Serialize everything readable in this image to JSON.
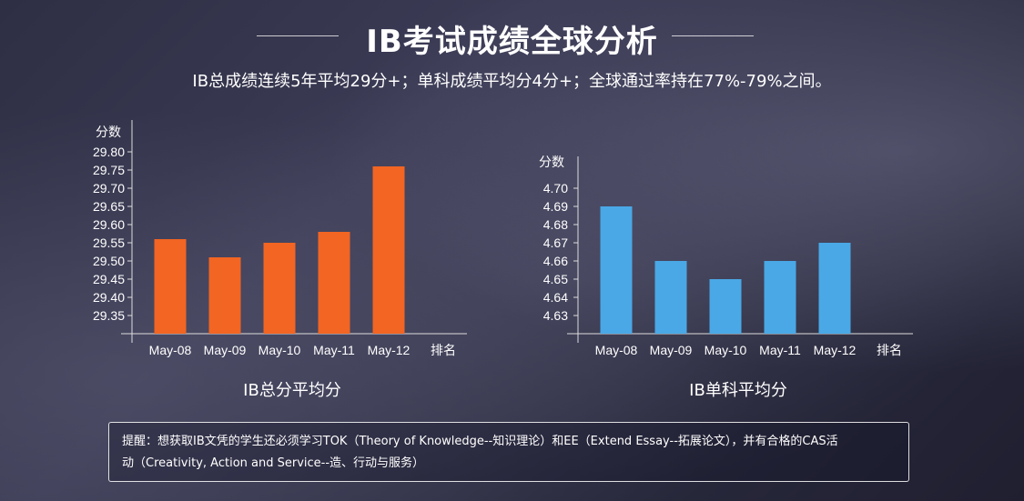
{
  "header": {
    "title": "IB考试成绩全球分析",
    "subtitle": "IB总成绩连续5年平均29分+；单科成绩平均分4分+；全球通过率持在77%-79%之间。"
  },
  "chart_data": [
    {
      "type": "bar",
      "title": "IB总分平均分",
      "ylabel": "分数",
      "categories": [
        "May-08",
        "May-09",
        "May-10",
        "May-11",
        "May-12",
        "排名"
      ],
      "values": [
        29.56,
        29.51,
        29.55,
        29.58,
        29.76,
        null
      ],
      "yticks": [
        29.35,
        29.4,
        29.45,
        29.5,
        29.55,
        29.6,
        29.65,
        29.7,
        29.75,
        29.8
      ],
      "ylim": [
        29.3,
        29.8
      ],
      "grid": false,
      "color": "#F26522"
    },
    {
      "type": "bar",
      "title": "IB单科平均分",
      "ylabel": "分数",
      "categories": [
        "May-08",
        "May-09",
        "May-10",
        "May-11",
        "May-12",
        "排名"
      ],
      "values": [
        4.69,
        4.66,
        4.65,
        4.66,
        4.67,
        null
      ],
      "yticks": [
        4.63,
        4.64,
        4.65,
        4.66,
        4.67,
        4.68,
        4.69,
        4.7
      ],
      "ylim": [
        4.62,
        4.7
      ],
      "grid": false,
      "color": "#4AA8E6"
    }
  ],
  "note": {
    "line1": "提醒：想获取IB文凭的学生还必须学习TOK（Theory of Knowledge--知识理论）和EE（Extend Essay--拓展论文），并有合格的CAS活",
    "line2": "动（Creativity, Action and Service--造、行动与服务）"
  }
}
